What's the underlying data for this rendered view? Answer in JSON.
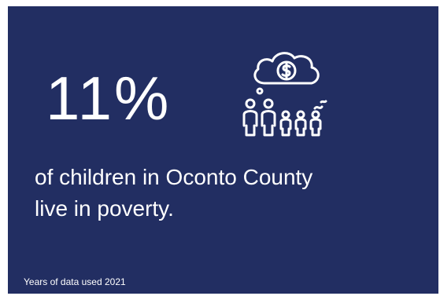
{
  "stat": {
    "value": "11%"
  },
  "description": {
    "line1": " of children in Oconto County",
    "line2": "live in poverty."
  },
  "footnote": "Years of data used 2021",
  "icon": {
    "name": "family-money-cloud-icon",
    "color": "#ffffff"
  },
  "colors": {
    "background": "#222e62",
    "text": "#ffffff",
    "page": "#ffffff"
  }
}
